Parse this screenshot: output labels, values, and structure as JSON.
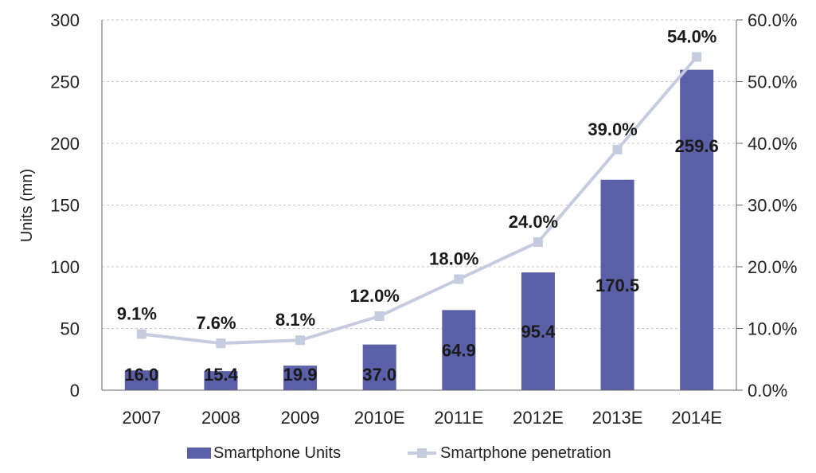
{
  "chart_data": {
    "type": "bar",
    "categories": [
      "2007",
      "2008",
      "2009",
      "2010E",
      "2011E",
      "2012E",
      "2013E",
      "2014E"
    ],
    "series": [
      {
        "name": "Smartphone Units",
        "type": "bar",
        "axis": "left",
        "values": [
          16.0,
          15.4,
          19.9,
          37.0,
          64.9,
          95.4,
          170.5,
          259.6
        ],
        "labels": [
          "16.0",
          "15.4",
          "19.9",
          "37.0",
          "64.9",
          "95.4",
          "170.5",
          "259.6"
        ],
        "color": "#5b5fa8"
      },
      {
        "name": "Smartphone penetration",
        "type": "line",
        "axis": "right",
        "values": [
          9.1,
          7.6,
          8.1,
          12.0,
          18.0,
          24.0,
          39.0,
          54.0
        ],
        "labels": [
          "9.1%",
          "7.6%",
          "8.1%",
          "12.0%",
          "18.0%",
          "24.0%",
          "39.0%",
          "54.0%"
        ],
        "color": "#c5ccdf"
      }
    ],
    "ylabel": "Units (mn)",
    "ylim": [
      0,
      300
    ],
    "yticks": [
      "0",
      "50",
      "100",
      "150",
      "200",
      "250",
      "300"
    ],
    "y2lim": [
      0,
      60
    ],
    "y2ticks": [
      "0.0%",
      "10.0%",
      "20.0%",
      "30.0%",
      "40.0%",
      "50.0%",
      "60.0%"
    ],
    "grid": true,
    "legend": "bottom"
  }
}
